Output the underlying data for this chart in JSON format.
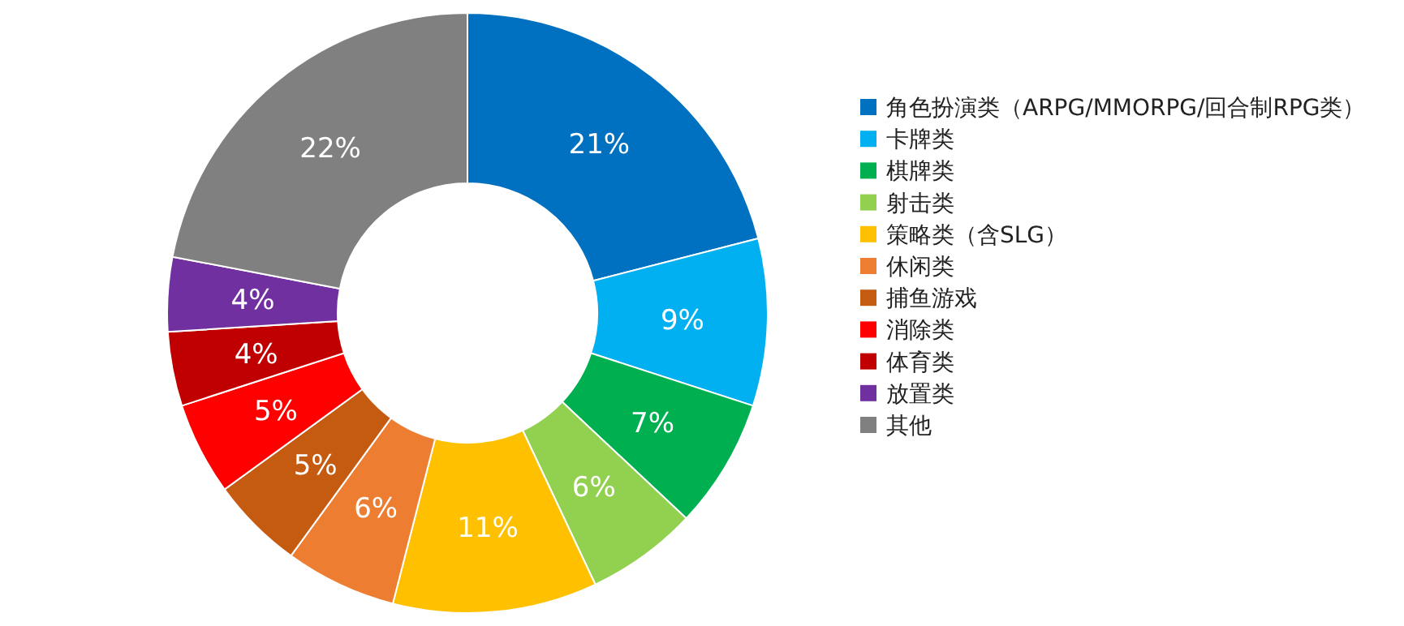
{
  "chart_data": {
    "type": "donut",
    "categories": [
      "角色扮演类（ARPG/MMORPG/回合制RPG类）",
      "卡牌类",
      "棋牌类",
      "射击类",
      "策略类（含SLG）",
      "休闲类",
      "捕鱼游戏",
      "消除类",
      "体育类",
      "放置类",
      "其他"
    ],
    "values": [
      21,
      9,
      7,
      6,
      11,
      6,
      5,
      5,
      4,
      4,
      22
    ],
    "colors": [
      "#0070c0",
      "#00b0f0",
      "#00b050",
      "#92d050",
      "#ffc000",
      "#ed7d31",
      "#c55a11",
      "#ff0000",
      "#c00000",
      "#7030a0",
      "#808080"
    ],
    "value_labels": [
      "21%",
      "9%",
      "7%",
      "6%",
      "11%",
      "6%",
      "5%",
      "5%",
      "4%",
      "4%",
      "22%"
    ],
    "legend": "right"
  }
}
